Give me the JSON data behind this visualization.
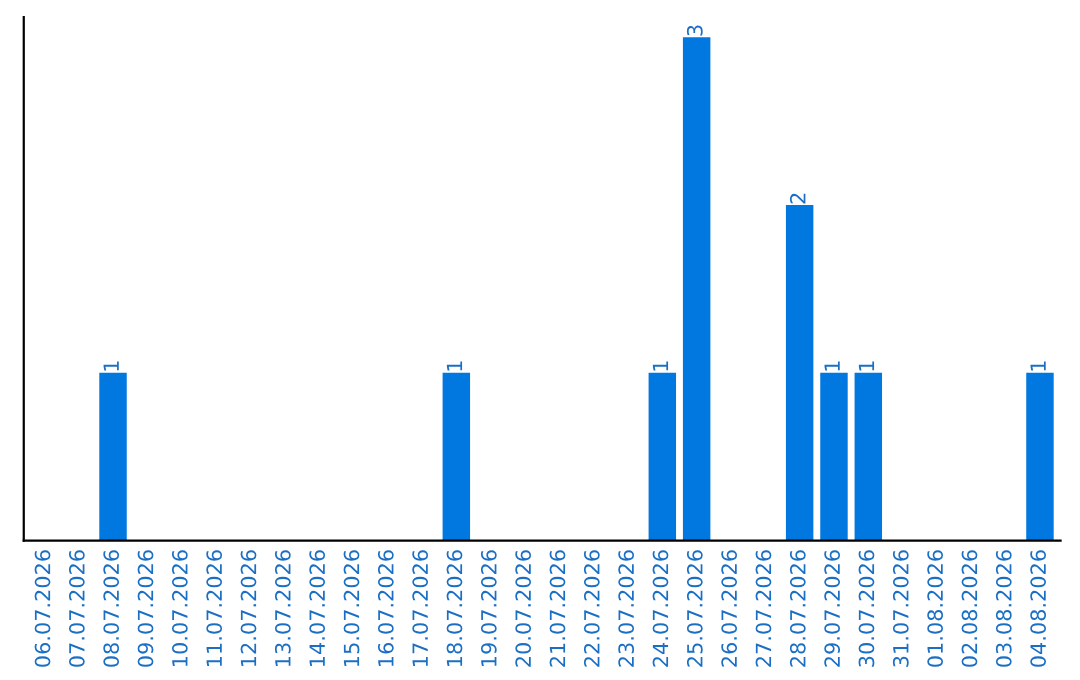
{
  "chart_data": {
    "type": "bar",
    "categories": [
      "06.07.2026",
      "07.07.2026",
      "08.07.2026",
      "09.07.2026",
      "10.07.2026",
      "11.07.2026",
      "12.07.2026",
      "13.07.2026",
      "14.07.2026",
      "15.07.2026",
      "16.07.2026",
      "17.07.2026",
      "18.07.2026",
      "19.07.2026",
      "20.07.2026",
      "21.07.2026",
      "22.07.2026",
      "23.07.2026",
      "24.07.2026",
      "25.07.2026",
      "26.07.2026",
      "27.07.2026",
      "28.07.2026",
      "29.07.2026",
      "30.07.2026",
      "31.07.2026",
      "01.08.2026",
      "02.08.2026",
      "03.08.2026",
      "04.08.2026"
    ],
    "values": [
      0,
      0,
      1,
      0,
      0,
      0,
      0,
      0,
      0,
      0,
      0,
      0,
      1,
      0,
      0,
      0,
      0,
      0,
      1,
      3,
      0,
      0,
      2,
      1,
      1,
      0,
      0,
      0,
      0,
      1
    ],
    "color": "#0078e0",
    "value_labels": [
      null,
      null,
      "1",
      null,
      null,
      null,
      null,
      null,
      null,
      null,
      null,
      null,
      "1",
      null,
      null,
      null,
      null,
      null,
      "1",
      "3",
      null,
      null,
      "2",
      "1",
      "1",
      null,
      null,
      null,
      null,
      "1"
    ],
    "grid": false,
    "legend": false
  }
}
